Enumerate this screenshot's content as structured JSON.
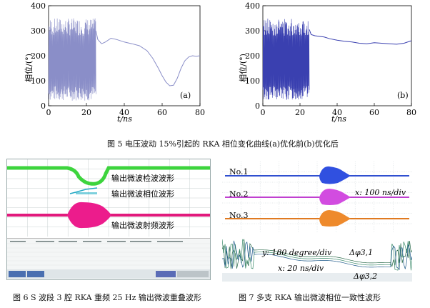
{
  "fig5": {
    "caption": "图 5   电压波动 15%引起的 RKA 相位变化曲线(a)优化前(b)优化后",
    "xlabel": "t/ns",
    "ylabel": "相位/(°)",
    "yticks": [
      "0",
      "100",
      "200",
      "300",
      "400"
    ],
    "xticks": [
      "0",
      "20",
      "40",
      "60",
      "80"
    ],
    "panel_a": "(a)",
    "panel_b": "(b)"
  },
  "fig6": {
    "caption": "图 6   S 波段 3 腔 RKA 重频 25 Hz 输出微波重叠波形",
    "labels": [
      "输出微波检波波形",
      "输出微波相位波形",
      "输出微波射频波形"
    ]
  },
  "fig7": {
    "caption": "图 7   多支 RKA 输出微波相位一致性波形",
    "channels": [
      "No.1",
      "No.2",
      "No.3"
    ],
    "x_scale": "x: 100 ns/div",
    "y_scale": "y: 180 degree/div",
    "x_scale2": "x: 20 ns/div",
    "delta1": "Δφ3,1",
    "delta2": "Δφ3,2"
  },
  "chart_data": [
    {
      "type": "line",
      "title": "",
      "panel": "(a)",
      "xlabel": "t/ns",
      "ylabel": "相位/(°)",
      "xlim": [
        0,
        80
      ],
      "ylim": [
        0,
        400
      ],
      "color": "#8a8ec8",
      "series": [
        {
          "x": [
            25,
            26,
            28,
            30,
            33,
            36,
            40,
            44,
            48,
            52,
            55,
            58,
            60,
            62,
            64,
            66,
            68,
            70,
            72,
            74,
            76,
            78,
            80
          ],
          "values": [
            300,
            265,
            248,
            255,
            270,
            265,
            255,
            248,
            240,
            220,
            190,
            150,
            120,
            95,
            80,
            82,
            110,
            150,
            180,
            195,
            200,
            198,
            200
          ]
        }
      ],
      "oscillation_region": [
        0,
        25
      ]
    },
    {
      "type": "line",
      "title": "",
      "panel": "(b)",
      "xlabel": "t/ns",
      "ylabel": "相位/(°)",
      "xlim": [
        0,
        80
      ],
      "ylim": [
        0,
        400
      ],
      "color": "#3a40b0",
      "series": [
        {
          "x": [
            25,
            26,
            28,
            30,
            33,
            36,
            40,
            44,
            48,
            52,
            56,
            60,
            64,
            68,
            72,
            76,
            80
          ],
          "values": [
            305,
            285,
            280,
            278,
            275,
            268,
            262,
            258,
            255,
            250,
            248,
            252,
            250,
            248,
            246,
            250,
            260
          ]
        }
      ],
      "oscillation_region": [
        0,
        25
      ]
    }
  ]
}
